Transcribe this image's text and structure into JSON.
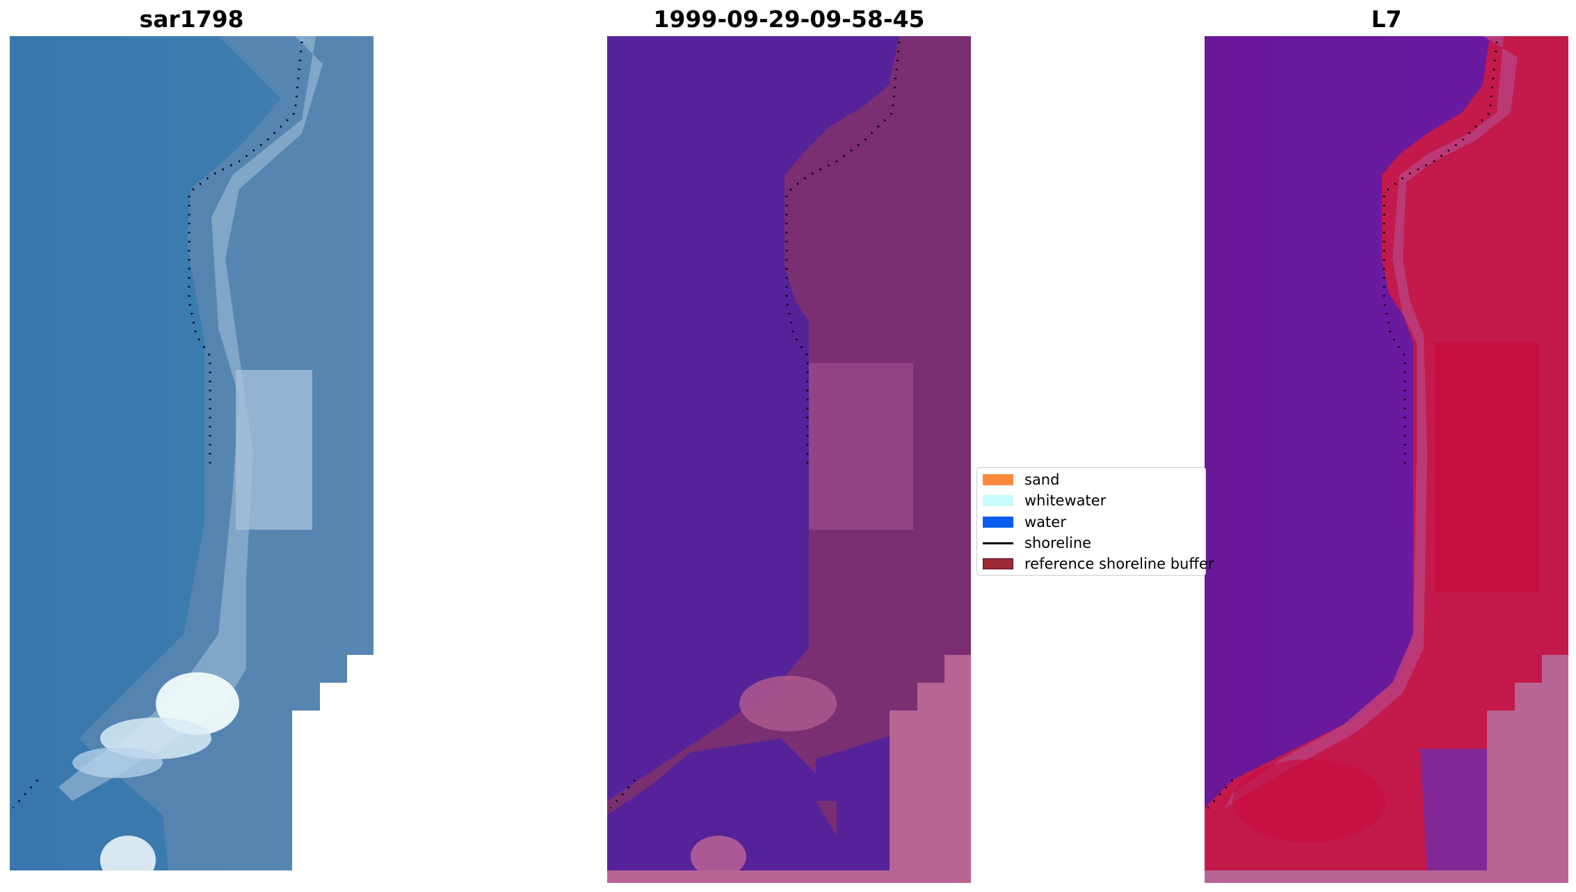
{
  "panels": [
    {
      "title": "sar1798"
    },
    {
      "title": "1999-09-29-09-58-45"
    },
    {
      "title": "L7"
    }
  ],
  "legend": {
    "items": [
      {
        "label": "sand",
        "color": "#ff8a3d"
      },
      {
        "label": "whitewater",
        "color": "#c8fbfb"
      },
      {
        "label": "water",
        "color": "#0a5cf0"
      },
      {
        "label": "shoreline",
        "color": "#000000"
      },
      {
        "label": "reference shoreline buffer",
        "color": "#9b2a35"
      }
    ]
  },
  "colors": {
    "rgb_water": "#3b78ab",
    "rgb_land": "#5f8ab4",
    "rgb_whitewater": "#eef7f8",
    "class_water": "#55229a",
    "class_land": "#7a2f72",
    "class_buffer": "#b86595",
    "mndwi_water": "#6b169c",
    "mndwi_land": "#c0194a",
    "shoreline": "#000000"
  }
}
